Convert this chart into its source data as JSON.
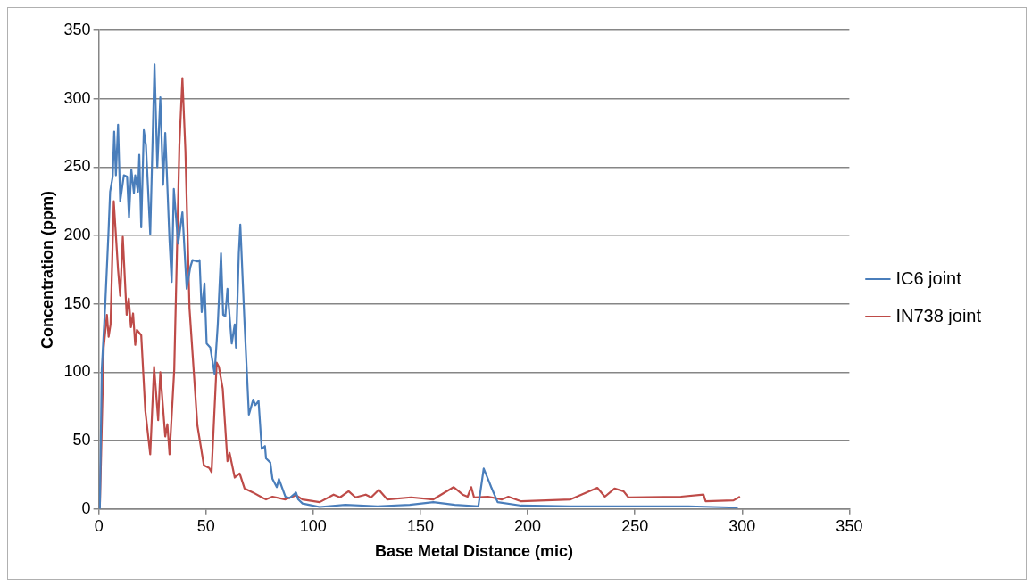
{
  "chart_data": {
    "type": "line",
    "xlabel": "Base Metal Distance (mic)",
    "ylabel": "Concentration (ppm)",
    "xlim": [
      0,
      350
    ],
    "xticks": [
      0,
      50,
      100,
      150,
      200,
      250,
      300,
      350
    ],
    "ylim": [
      0,
      350
    ],
    "yticks": [
      0,
      50,
      100,
      150,
      200,
      250,
      300,
      350
    ],
    "grid": "y",
    "legend": "right",
    "marker": "none",
    "line_style": "solid",
    "series": [
      {
        "name": "IC6 joint",
        "color": "#4a7ebb",
        "x": [
          0.5,
          1.4,
          3,
          4.5,
          5.3,
          6.5,
          7.2,
          8,
          9,
          10,
          11.7,
          13.2,
          14.1,
          15.2,
          16.4,
          17,
          18.3,
          18.9,
          19.8,
          21,
          22,
          24,
          26,
          27.3,
          28.7,
          30,
          31,
          33,
          34,
          35,
          37,
          39,
          41,
          42.7,
          43.7,
          46,
          47,
          48,
          49.3,
          50.3,
          52,
          54,
          55.5,
          57,
          58,
          59,
          60,
          62,
          63.4,
          64,
          65.3,
          66,
          68,
          70,
          72,
          73,
          74.5,
          76,
          77.5,
          78,
          80,
          81,
          83,
          84,
          87,
          89,
          92,
          93,
          95,
          98,
          103,
          115,
          130,
          145,
          156,
          166,
          177,
          179.5,
          182,
          183,
          186,
          197,
          220,
          250,
          275,
          298
        ],
        "values": [
          0,
          102,
          149,
          201,
          232,
          243,
          276,
          244,
          281,
          225,
          244,
          243,
          213,
          248,
          231,
          244,
          232,
          259,
          206,
          277,
          266,
          201,
          325,
          250,
          301,
          237,
          275,
          196,
          166,
          234,
          194,
          217,
          161,
          177,
          182,
          181,
          182,
          144,
          165,
          121,
          118,
          99,
          135,
          187,
          142,
          141,
          161,
          121,
          135,
          118,
          187,
          208,
          135,
          69,
          80,
          76,
          79,
          44,
          46,
          37,
          34,
          22,
          16,
          22,
          9,
          8,
          12,
          7,
          4,
          3,
          1.5,
          3,
          2,
          3,
          5,
          3,
          2,
          29.6,
          20,
          16,
          5,
          2.5,
          2,
          2,
          2,
          1
        ]
      },
      {
        "name": "IN738 joint",
        "color": "#be4b48",
        "x": [
          0.5,
          2.3,
          3.8,
          4.6,
          5.5,
          7,
          9,
          10,
          11.2,
          13,
          14,
          15,
          16,
          17,
          17.8,
          19.8,
          21.7,
          24,
          25.8,
          27.7,
          28.7,
          31,
          32,
          33,
          35.2,
          37.6,
          39,
          40.4,
          42.3,
          46,
          49,
          51.5,
          52.6,
          55,
          56,
          57.8,
          60,
          61,
          63.4,
          65.7,
          68,
          72,
          76.6,
          78,
          81,
          87,
          92,
          95,
          103,
          109.5,
          112.5,
          116.5,
          119.7,
          124.5,
          127,
          130.6,
          134.5,
          145.6,
          156,
          165.5,
          169.7,
          172,
          173.7,
          175,
          181.5,
          188,
          191,
          197,
          220,
          232.5,
          236,
          240.5,
          244.7,
          247,
          271.5,
          282,
          283,
          296,
          299
        ],
        "values": [
          1,
          118,
          142,
          126,
          135,
          225,
          175,
          156,
          199,
          142,
          154,
          133,
          143,
          120,
          131,
          127,
          72,
          40,
          104,
          65,
          100,
          53,
          62,
          40,
          102,
          266,
          315,
          262,
          147,
          61,
          32,
          30,
          27,
          107,
          104,
          88,
          35,
          41,
          23,
          26,
          15,
          12,
          8,
          7,
          9,
          7,
          10,
          7,
          5,
          10.5,
          8.5,
          13,
          8.5,
          10.5,
          8.5,
          14,
          7,
          8.5,
          7,
          16,
          10.5,
          9,
          16,
          8.5,
          9,
          7,
          9,
          5.6,
          7,
          15.5,
          9,
          15,
          13,
          8.5,
          9,
          10.5,
          5.6,
          6.3,
          9
        ]
      }
    ]
  }
}
